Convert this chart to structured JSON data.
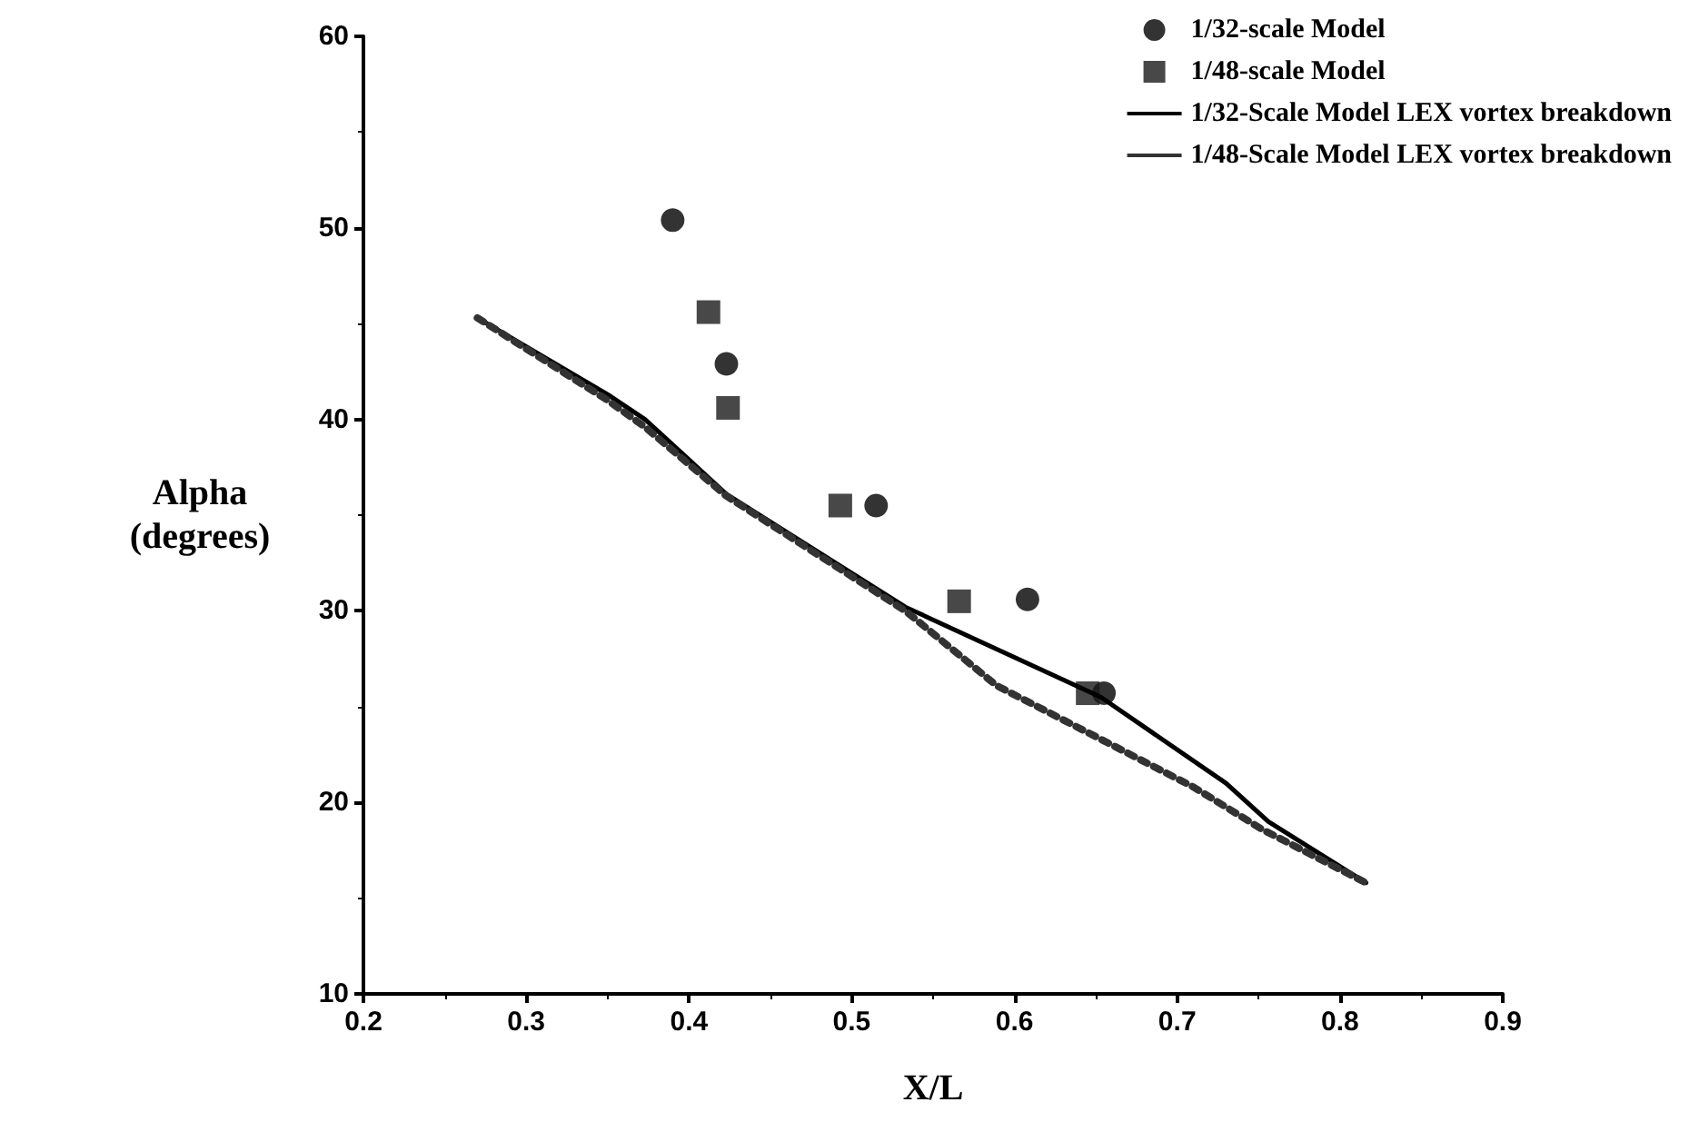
{
  "chart_data": {
    "type": "scatter",
    "xlabel": "X/L",
    "ylabel": "Alpha (degrees)",
    "xlim": [
      0.2,
      0.9
    ],
    "xticks": [
      0.2,
      0.3,
      0.4,
      0.5,
      0.6,
      0.7,
      0.8,
      0.9
    ],
    "ylim": [
      10,
      60
    ],
    "yticks": [
      10,
      20,
      30,
      40,
      50,
      60
    ],
    "grid": false,
    "legend": "top right",
    "series": [
      {
        "name": "1/32-scale Model",
        "marker": "circle",
        "color": "#000000",
        "x": [
          0.39,
          0.423,
          0.515,
          0.608,
          0.655
        ],
        "values": [
          50.4,
          42.9,
          35.5,
          30.6,
          25.7
        ]
      },
      {
        "name": "1/48-scale Model",
        "marker": "square",
        "color": "#1a1a1a",
        "x": [
          0.412,
          0.424,
          0.493,
          0.566,
          0.645
        ],
        "values": [
          45.6,
          40.6,
          35.5,
          30.5,
          25.7
        ]
      },
      {
        "name": "1/32-Scale Model LEX vortex breakdown",
        "type": "line",
        "marker": "none",
        "line_style": "solid",
        "color": "#000000",
        "x": [
          0.27,
          0.35,
          0.373,
          0.423,
          0.533,
          0.653,
          0.73,
          0.756,
          0.816
        ],
        "values": [
          45.3,
          41.3,
          40,
          36.1,
          30.2,
          25.5,
          21,
          19,
          15.8
        ]
      },
      {
        "name": "1/48-Scale Model LEX vortex breakdown",
        "type": "line",
        "marker": "none",
        "line_style": "dotted",
        "color": "#333333",
        "x": [
          0.27,
          0.35,
          0.373,
          0.423,
          0.533,
          0.589,
          0.653,
          0.71,
          0.752,
          0.816
        ],
        "values": [
          45.3,
          41,
          39.6,
          36,
          30,
          26.1,
          23.3,
          20.8,
          18.6,
          15.8
        ]
      }
    ]
  }
}
